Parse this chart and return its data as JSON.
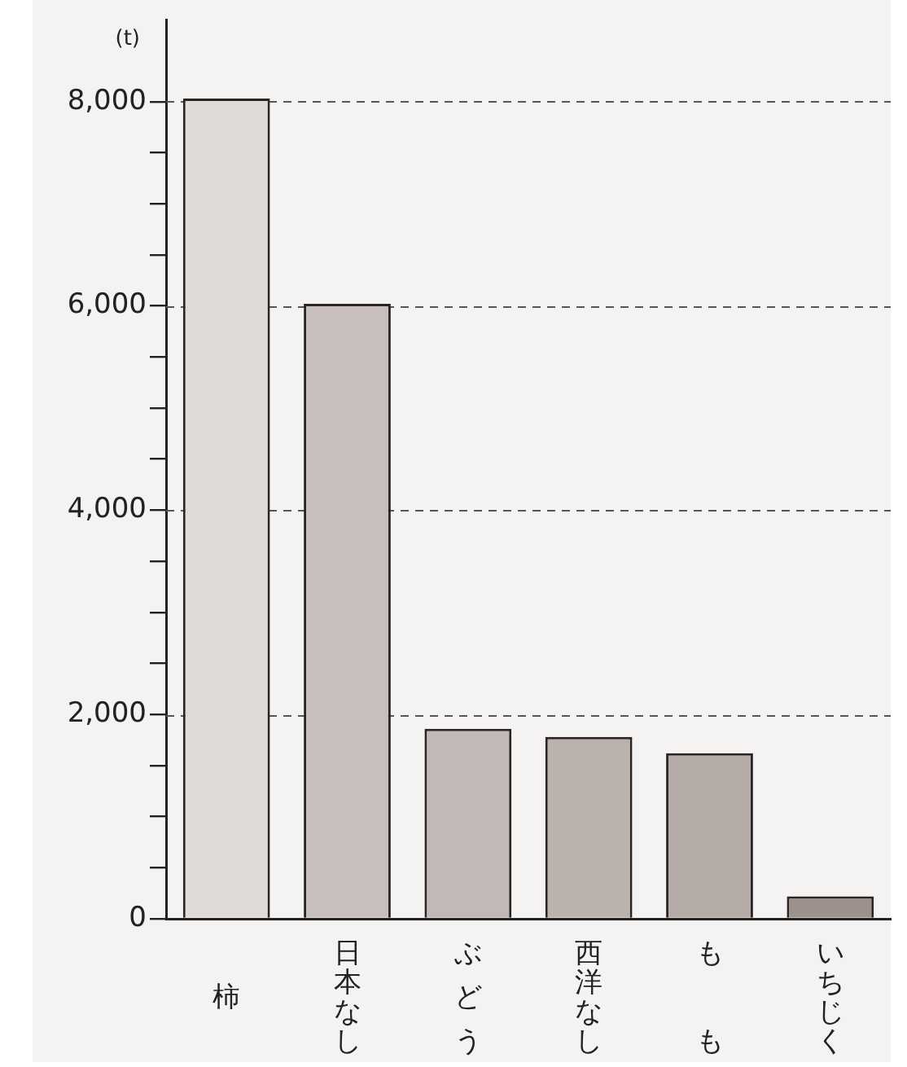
{
  "chart_data": {
    "type": "bar",
    "ylabel": "(t)",
    "categories": [
      "柿",
      "日本なし",
      "ぶどう",
      "西洋なし",
      "もも",
      "いちじく"
    ],
    "values": [
      8030,
      6020,
      1860,
      1780,
      1620,
      220
    ],
    "colors": [
      "#e0dbd9",
      "#c8bebc",
      "#c2b8b5",
      "#bbb1ad",
      "#b4aaa6",
      "#9d918e"
    ],
    "ylim": [
      0,
      8800
    ],
    "yticks": [
      0,
      {
        "value": 500,
        "label": null
      },
      {
        "value": 1000,
        "label": null
      },
      {
        "value": 1500,
        "label": null
      },
      {
        "value": 2000,
        "label": "2,000"
      },
      {
        "value": 2500,
        "label": null
      },
      {
        "value": 3000,
        "label": null
      },
      {
        "value": 3500,
        "label": null
      },
      {
        "value": 4000,
        "label": "4,000"
      },
      {
        "value": 4500,
        "label": null
      },
      {
        "value": 5000,
        "label": null
      },
      {
        "value": 5500,
        "label": null
      },
      {
        "value": 6000,
        "label": "6,000"
      },
      {
        "value": 6500,
        "label": null
      },
      {
        "value": 7000,
        "label": null
      },
      {
        "value": 7500,
        "label": null
      },
      {
        "value": 8000,
        "label": "8,000"
      }
    ],
    "grid": "y",
    "line_style": "dashed"
  }
}
